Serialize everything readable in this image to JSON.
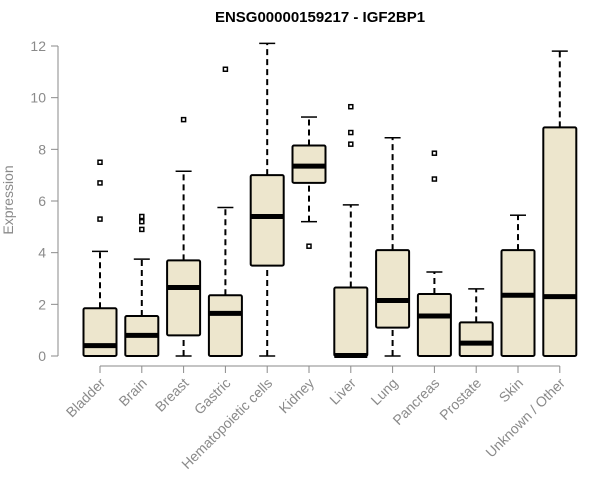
{
  "chart_data": {
    "type": "boxplot",
    "title": "ENSG00000159217 - IGF2BP1",
    "xlabel": "",
    "ylabel": "Expression",
    "ylim": [
      0,
      12
    ],
    "yticks": [
      0,
      2,
      4,
      6,
      8,
      10,
      12
    ],
    "categories": [
      "Bladder",
      "Brain",
      "Breast",
      "Gastric",
      "Hematopoietic cells",
      "Kidney",
      "Liver",
      "Lung",
      "Pancreas",
      "Prostate",
      "Skin",
      "Unknown / Other"
    ],
    "series": [
      {
        "name": "Bladder",
        "min": 0,
        "q1": 0,
        "median": 0.4,
        "q3": 1.85,
        "max": 4.05,
        "outliers": [
          5.3,
          6.7,
          7.5
        ]
      },
      {
        "name": "Brain",
        "min": 0,
        "q1": 0,
        "median": 0.8,
        "q3": 1.55,
        "max": 3.75,
        "outliers": [
          4.9,
          5.2,
          5.4
        ]
      },
      {
        "name": "Breast",
        "min": 0,
        "q1": 0.8,
        "median": 2.65,
        "q3": 3.7,
        "max": 7.15,
        "outliers": [
          9.15
        ]
      },
      {
        "name": "Gastric",
        "min": 0,
        "q1": 0,
        "median": 1.65,
        "q3": 2.35,
        "max": 5.75,
        "outliers": [
          11.1
        ]
      },
      {
        "name": "Hematopoietic cells",
        "min": 0,
        "q1": 3.5,
        "median": 5.4,
        "q3": 7.0,
        "max": 12.1,
        "outliers": []
      },
      {
        "name": "Kidney",
        "min": 5.2,
        "q1": 6.7,
        "median": 7.35,
        "q3": 8.15,
        "max": 9.25,
        "outliers": [
          4.25
        ]
      },
      {
        "name": "Liver",
        "min": 0,
        "q1": 0,
        "median": 0.02,
        "q3": 2.65,
        "max": 5.85,
        "outliers": [
          8.2,
          8.65,
          9.65
        ]
      },
      {
        "name": "Lung",
        "min": 0,
        "q1": 1.1,
        "median": 2.15,
        "q3": 4.1,
        "max": 8.45,
        "outliers": []
      },
      {
        "name": "Pancreas",
        "min": 0,
        "q1": 0,
        "median": 1.55,
        "q3": 2.4,
        "max": 3.25,
        "outliers": [
          6.85,
          7.85
        ]
      },
      {
        "name": "Prostate",
        "min": 0,
        "q1": 0,
        "median": 0.5,
        "q3": 1.3,
        "max": 2.6,
        "outliers": []
      },
      {
        "name": "Skin",
        "min": 0,
        "q1": 0,
        "median": 2.35,
        "q3": 4.1,
        "max": 5.45,
        "outliers": []
      },
      {
        "name": "Unknown / Other",
        "min": 0,
        "q1": 0,
        "median": 2.3,
        "q3": 8.85,
        "max": 11.8,
        "outliers": []
      }
    ]
  }
}
